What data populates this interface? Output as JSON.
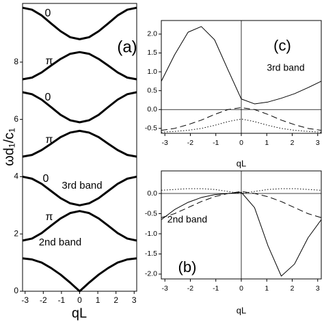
{
  "chart_data": [
    {
      "type": "line",
      "x_label": "qL",
      "y_label": "ωd₁/c₁",
      "x": [
        -3.14,
        -2.62,
        -2.09,
        -1.57,
        -1.05,
        -0.52,
        0,
        0.52,
        1.05,
        1.57,
        2.09,
        2.62,
        3.14
      ],
      "xlim": [
        -3.14,
        3.14
      ],
      "xticks": [
        -3,
        -2,
        -1,
        0,
        1,
        2,
        3
      ],
      "ylim": [
        0,
        10.05
      ],
      "yticks": [
        0,
        2,
        4,
        6,
        8
      ],
      "color": "#000000",
      "series": [
        {
          "dash": "solid",
          "values": [
            9.9,
            9.83,
            9.63,
            9.35,
            9.08,
            8.87,
            8.8,
            8.87,
            9.08,
            9.35,
            9.63,
            9.83,
            9.9
          ]
        },
        {
          "dash": "solid",
          "values": [
            7.4,
            7.46,
            7.64,
            7.88,
            8.11,
            8.29,
            8.35,
            8.29,
            8.11,
            7.88,
            7.64,
            7.46,
            7.4
          ]
        },
        {
          "dash": "solid",
          "values": [
            6.95,
            6.88,
            6.69,
            6.43,
            6.16,
            5.97,
            5.9,
            5.97,
            6.16,
            6.43,
            6.69,
            6.88,
            6.95
          ]
        },
        {
          "dash": "solid",
          "values": [
            4.7,
            4.76,
            4.93,
            5.15,
            5.38,
            5.54,
            5.6,
            5.54,
            5.38,
            5.15,
            4.93,
            4.76,
            4.7
          ]
        },
        {
          "dash": "solid",
          "values": [
            4.0,
            3.93,
            3.75,
            3.5,
            3.25,
            3.07,
            3.0,
            3.07,
            3.25,
            3.5,
            3.75,
            3.93,
            4.0
          ]
        },
        {
          "dash": "solid",
          "values": [
            1.77,
            1.84,
            2.03,
            2.29,
            2.54,
            2.73,
            2.8,
            2.73,
            2.54,
            2.29,
            2.03,
            1.84,
            1.77
          ]
        },
        {
          "dash": "solid",
          "values": [
            1.15,
            1.11,
            1.0,
            0.81,
            0.58,
            0.3,
            0,
            0.3,
            0.58,
            0.81,
            1.0,
            1.11,
            1.15
          ]
        }
      ],
      "annotations": [
        "0",
        "π",
        "0",
        "π",
        "0",
        "3rd band",
        "π",
        "2nd band",
        "(a)"
      ]
    },
    {
      "type": "line",
      "x_label": "qL",
      "x": [
        -3.14,
        -2.62,
        -2.09,
        -1.57,
        -1.05,
        -0.52,
        0,
        0.52,
        1.05,
        1.57,
        2.09,
        2.62,
        3.14
      ],
      "xlim": [
        -3.14,
        3.14
      ],
      "xticks": [
        -3,
        -2,
        -1,
        0,
        1,
        2,
        3
      ],
      "ylim": [
        -0.63,
        2.36
      ],
      "yticks": [
        -0.5,
        {
          "value": 0,
          "label": "0.0"
        },
        0.5,
        {
          "value": 1,
          "label": "1.0"
        },
        1.5,
        {
          "value": 2,
          "label": "2.0"
        }
      ],
      "color": "#000000",
      "series": [
        {
          "dash": "solid",
          "values": [
            0.75,
            1.45,
            2.05,
            2.2,
            1.85,
            1.05,
            0.28,
            0.15,
            0.2,
            0.3,
            0.42,
            0.58,
            0.75
          ]
        },
        {
          "dash": "dashed",
          "values": [
            -0.55,
            -0.5,
            -0.4,
            -0.28,
            -0.13,
            0.0,
            0.05,
            0.0,
            -0.13,
            -0.28,
            -0.4,
            -0.5,
            -0.55
          ]
        },
        {
          "dash": "dotted",
          "values": [
            -0.6,
            -0.58,
            -0.55,
            -0.5,
            -0.42,
            -0.32,
            -0.25,
            -0.32,
            -0.42,
            -0.5,
            -0.55,
            -0.58,
            -0.6
          ]
        }
      ],
      "annotations": [
        "(c)",
        "3rd band"
      ]
    },
    {
      "type": "line",
      "x_label": "qL",
      "x": [
        -3.14,
        -2.62,
        -2.09,
        -1.57,
        -1.05,
        -0.52,
        0,
        0.52,
        1.05,
        1.57,
        2.09,
        2.62,
        3.14
      ],
      "xlim": [
        -3.14,
        3.14
      ],
      "xticks": [
        -3,
        -2,
        -1,
        0,
        1,
        2,
        3
      ],
      "ylim": [
        -2.12,
        0.56
      ],
      "yticks": [
        {
          "value": -2,
          "label": "-2.0"
        },
        -1.5,
        {
          "value": -1,
          "label": "-1.0"
        },
        -0.5,
        {
          "value": 0,
          "label": "0.0"
        }
      ],
      "color": "#000000",
      "series": [
        {
          "dash": "solid",
          "values": [
            -0.65,
            -0.4,
            -0.22,
            -0.1,
            -0.03,
            0.0,
            0.03,
            -0.35,
            -1.3,
            -2.05,
            -1.75,
            -1.1,
            -0.65
          ]
        },
        {
          "dash": "dashed",
          "values": [
            -0.6,
            -0.5,
            -0.35,
            -0.2,
            -0.08,
            0.0,
            0.05,
            0.0,
            -0.08,
            -0.2,
            -0.35,
            -0.5,
            -0.6
          ]
        },
        {
          "dash": "dotted",
          "values": [
            0.08,
            0.1,
            0.12,
            0.12,
            0.1,
            0.05,
            0.0,
            0.05,
            0.1,
            0.12,
            0.12,
            0.1,
            0.08
          ]
        }
      ],
      "annotations": [
        "2nd band",
        "(b)"
      ]
    }
  ]
}
